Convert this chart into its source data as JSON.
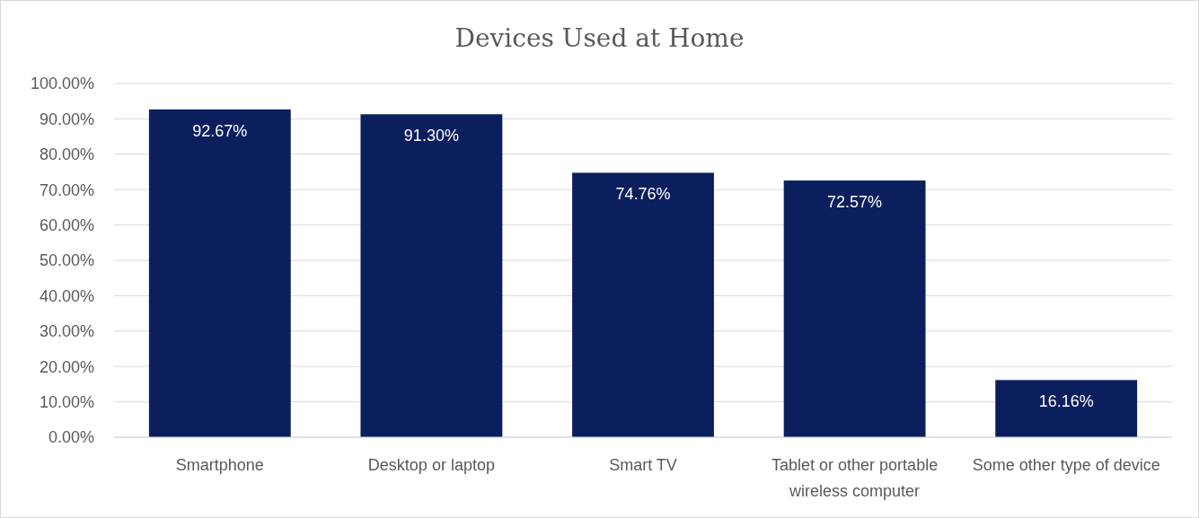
{
  "chart_data": {
    "type": "bar",
    "title": "Devices Used at Home",
    "categories": [
      "Smartphone",
      "Desktop or laptop",
      "Smart TV",
      "Tablet or other portable wireless computer",
      "Some other type of device"
    ],
    "values": [
      92.67,
      91.3,
      74.76,
      72.57,
      16.16
    ],
    "value_labels": [
      "92.67%",
      "91.30%",
      "74.76%",
      "72.57%",
      "16.16%"
    ],
    "color": "#0b1f5e",
    "ylim": [
      0,
      100
    ],
    "yticks": [
      {
        "value": 0,
        "label": "0.00%"
      },
      {
        "value": 10,
        "label": "10.00%"
      },
      {
        "value": 20,
        "label": "20.00%"
      },
      {
        "value": 30,
        "label": "30.00%"
      },
      {
        "value": 40,
        "label": "40.00%"
      },
      {
        "value": 50,
        "label": "50.00%"
      },
      {
        "value": 60,
        "label": "60.00%"
      },
      {
        "value": 70,
        "label": "70.00%"
      },
      {
        "value": 80,
        "label": "80.00%"
      },
      {
        "value": 90,
        "label": "90.00%"
      },
      {
        "value": 100,
        "label": "100.00%"
      }
    ],
    "grid": true
  }
}
